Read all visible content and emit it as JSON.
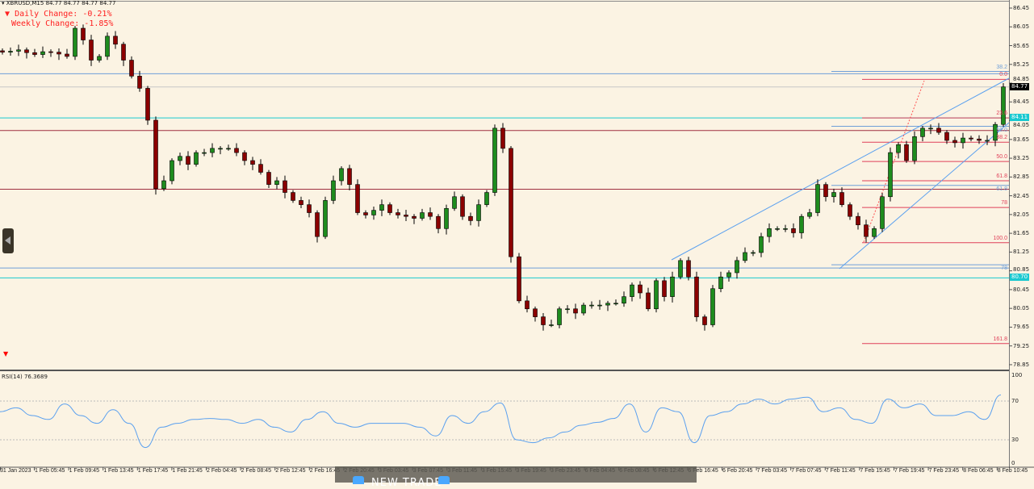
{
  "header": {
    "symbol_line": "XBRUSD,M15  84.77 84.77 84.77 84.77"
  },
  "info": {
    "daily_change": "Daily Change: -0.21%",
    "weekly_change": "Weekly Change: -1.85%"
  },
  "colors": {
    "background": "#fbf3e3",
    "bull": "#1e8c1e",
    "bear": "#8b0000",
    "fib_red": "#e0405a",
    "fib_blue": "#6f9fd8",
    "cyan": "#19c9d0",
    "rsi": "#5aa0ef"
  },
  "price_boxes": [
    {
      "label": "84.77",
      "bg": "#000000",
      "fg": "#ffffff"
    },
    {
      "label": "84.11",
      "bg": "#19c9d0",
      "fg": "#ffffff"
    },
    {
      "label": "80.70",
      "bg": "#19c9d0",
      "fg": "#ffffff"
    }
  ],
  "fib_labels_red": [
    "0.0",
    "23.6",
    "38.2",
    "50.0",
    "61.8",
    "78",
    "100.0",
    "161.8"
  ],
  "fib_labels_blue": [
    "38.2",
    "50.0",
    "61.8",
    "78"
  ],
  "rsi": {
    "title": "RSI(14) 76.3689",
    "ticks": [
      "100",
      "70",
      "30",
      "0"
    ]
  },
  "overlay": {
    "label": "NEW TRADE"
  },
  "chart_data": {
    "type": "candlestick",
    "symbol": "XBRUSD",
    "timeframe": "M15",
    "y_ticks": [
      "86.45",
      "86.05",
      "85.65",
      "85.25",
      "84.85",
      "84.45",
      "84.05",
      "83.65",
      "83.25",
      "82.85",
      "82.45",
      "82.05",
      "81.65",
      "81.25",
      "80.85",
      "80.45",
      "80.05",
      "79.65",
      "79.25",
      "78.85"
    ],
    "ylim": [
      78.85,
      86.45
    ],
    "x_ticks": [
      "31 Jan 2023",
      "1 Feb 05:45",
      "1 Feb 09:45",
      "1 Feb 13:45",
      "1 Feb 17:45",
      "1 Feb 21:45",
      "2 Feb 04:45",
      "2 Feb 08:45",
      "2 Feb 12:45",
      "2 Feb 16:45",
      "2 Feb 20:45",
      "3 Feb 03:45",
      "3 Feb 07:45",
      "3 Feb 11:45",
      "3 Feb 15:45",
      "3 Feb 19:45",
      "3 Feb 23:45",
      "6 Feb 04:45",
      "6 Feb 08:45",
      "6 Feb 12:45",
      "6 Feb 16:45",
      "6 Feb 20:45",
      "7 Feb 03:45",
      "7 Feb 07:45",
      "7 Feb 11:45",
      "7 Feb 15:45",
      "7 Feb 19:45",
      "7 Feb 23:45",
      "8 Feb 06:45",
      "8 Feb 10:45"
    ],
    "close": [
      85.51,
      85.53,
      85.56,
      85.5,
      85.46,
      85.52,
      85.51,
      85.47,
      85.42,
      86.02,
      85.77,
      85.34,
      85.42,
      85.85,
      85.68,
      85.34,
      85.0,
      84.74,
      84.06,
      82.6,
      82.77,
      83.2,
      83.29,
      83.12,
      83.37,
      83.37,
      83.46,
      83.46,
      83.46,
      83.37,
      83.2,
      83.12,
      82.95,
      82.69,
      82.77,
      82.52,
      82.35,
      82.26,
      82.09,
      81.58,
      82.35,
      82.77,
      83.03,
      82.69,
      82.09,
      82.04,
      82.14,
      82.26,
      82.09,
      82.04,
      82.01,
      81.97,
      82.09,
      82.01,
      81.75,
      82.18,
      82.43,
      82.01,
      81.92,
      82.26,
      82.52,
      83.89,
      83.46,
      81.15,
      80.21,
      80.04,
      79.87,
      79.7,
      79.7,
      80.04,
      80.04,
      79.95,
      80.12,
      80.12,
      80.12,
      80.16,
      80.16,
      80.3,
      80.55,
      80.38,
      80.04,
      80.64,
      80.3,
      80.72,
      81.07,
      80.72,
      79.87,
      79.7,
      80.47,
      80.72,
      80.81,
      81.07,
      81.24,
      81.24,
      81.58,
      81.75,
      81.75,
      81.75,
      81.66,
      82.01,
      82.09,
      82.69,
      82.43,
      82.52,
      82.26,
      82.01,
      81.83,
      81.58,
      81.75,
      82.43,
      83.37,
      83.54,
      83.2,
      83.71,
      83.89,
      83.89,
      83.8,
      83.63,
      83.58,
      83.68,
      83.66,
      83.63,
      83.63,
      83.97,
      84.77
    ],
    "horizontal_levels": [
      {
        "price": 85.05,
        "color": "#6f9fd8"
      },
      {
        "price": 84.77,
        "color": "#c8c8c8"
      },
      {
        "price": 84.11,
        "color": "#19c9d0"
      },
      {
        "price": 83.84,
        "color": "#a03040"
      },
      {
        "price": 82.59,
        "color": "#a03040"
      },
      {
        "price": 80.91,
        "color": "#6f9fd8"
      },
      {
        "price": 80.7,
        "color": "#19c9d0"
      }
    ],
    "fib_levels_red": [
      84.93,
      84.11,
      83.59,
      83.18,
      82.77,
      82.2,
      81.45,
      79.3
    ],
    "fib_levels_blue": [
      85.1,
      83.93,
      82.67,
      80.98
    ],
    "rsi_values": [
      59,
      63,
      55,
      51,
      67,
      55,
      47,
      61,
      47,
      22,
      43,
      47,
      51,
      52,
      51,
      47,
      51,
      43,
      38,
      51,
      59,
      47,
      43,
      47,
      47,
      47,
      43,
      34,
      55,
      47,
      59,
      68,
      30,
      27,
      32,
      38,
      45,
      48,
      52,
      67,
      38,
      63,
      59,
      27,
      55,
      59,
      67,
      72,
      67,
      72,
      74,
      59,
      63,
      51,
      47,
      72,
      63,
      67,
      55,
      55,
      59,
      51,
      76.37
    ],
    "rsi_levels": [
      70,
      30
    ],
    "rsi_ylim": [
      0,
      100
    ]
  }
}
